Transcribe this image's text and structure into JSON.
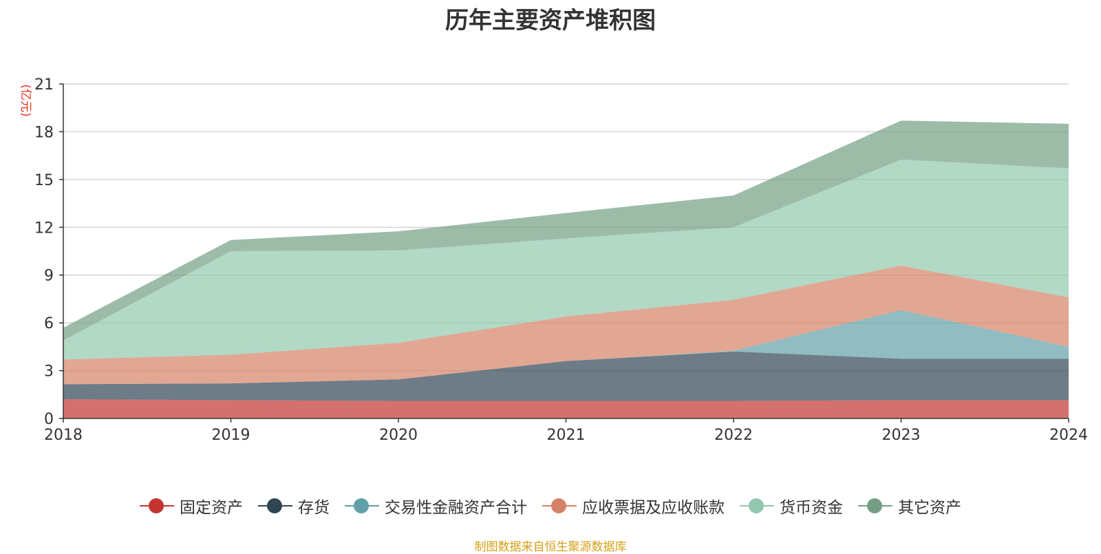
{
  "chart_data": {
    "type": "area",
    "title": "历年主要资产堆积图",
    "ylabel": "(亿元)",
    "xlabel": "",
    "categories": [
      "2018",
      "2019",
      "2020",
      "2021",
      "2022",
      "2023",
      "2024"
    ],
    "ylim": [
      0,
      21
    ],
    "yticks": [
      0,
      3,
      6,
      9,
      12,
      15,
      18,
      21
    ],
    "stacked": true,
    "grid": true,
    "legend_position": "bottom",
    "series": [
      {
        "name": "固定资产",
        "color": "#c23531",
        "values": [
          1.2,
          1.15,
          1.1,
          1.1,
          1.1,
          1.15,
          1.15
        ]
      },
      {
        "name": "存货",
        "color": "#2f4554",
        "values": [
          0.95,
          1.05,
          1.35,
          2.5,
          3.1,
          2.6,
          2.6
        ]
      },
      {
        "name": "交易性金融资产合计",
        "color": "#61a0a8",
        "values": [
          0,
          0,
          0,
          0,
          0.05,
          3.05,
          0.75
        ]
      },
      {
        "name": "应收票据及应收账款",
        "color": "#d48265",
        "values": [
          1.55,
          1.8,
          2.3,
          2.8,
          3.2,
          2.8,
          3.1
        ]
      },
      {
        "name": "货币资金",
        "color": "#91c7ae",
        "values": [
          1.2,
          6.5,
          5.8,
          4.9,
          4.55,
          6.65,
          8.1
        ]
      },
      {
        "name": "其它资产",
        "color": "#749f83",
        "values": [
          0.8,
          0.7,
          1.2,
          1.6,
          2.0,
          2.45,
          2.8
        ]
      }
    ]
  },
  "source_note": "制图数据来自恒生聚源数据库"
}
